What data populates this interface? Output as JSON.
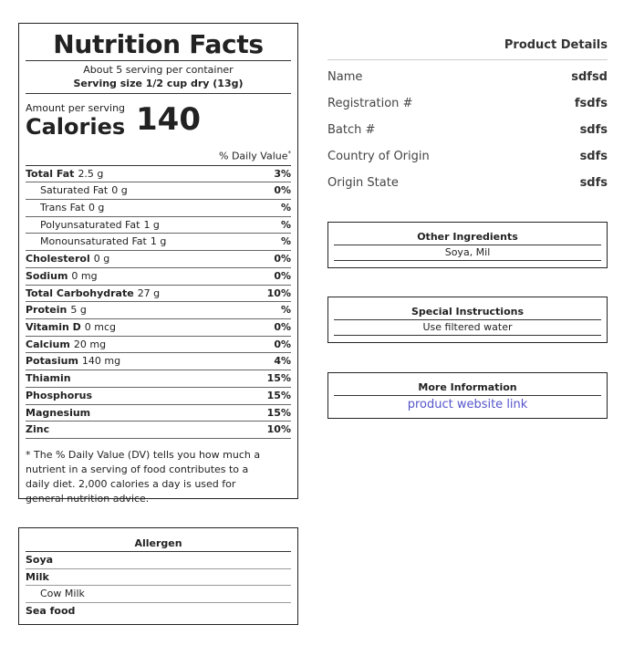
{
  "nutrition": {
    "title": "Nutrition Facts",
    "servings_per_container": "About 5 serving per container",
    "serving_size": "Serving size 1/2 cup dry (13g)",
    "amount_label": "Amount per serving",
    "calories_label": "Calories",
    "calories_value": "140",
    "dv_header": "% Daily Value",
    "dv_mark": "*",
    "rows": [
      {
        "name": "Total Fat",
        "amount": "2.5 g",
        "pct": "3%",
        "sub": false
      },
      {
        "name": "Saturated Fat",
        "amount": "0 g",
        "pct": "0%",
        "sub": true
      },
      {
        "name": "Trans Fat",
        "amount": "0 g",
        "pct": "%",
        "sub": true
      },
      {
        "name": "Polyunsaturated Fat",
        "amount": "1 g",
        "pct": "%",
        "sub": true
      },
      {
        "name": "Monounsaturated Fat",
        "amount": "1 g",
        "pct": "%",
        "sub": true
      },
      {
        "name": "Cholesterol",
        "amount": "0 g",
        "pct": "0%",
        "sub": false
      },
      {
        "name": "Sodium",
        "amount": "0 mg",
        "pct": "0%",
        "sub": false
      },
      {
        "name": "Total Carbohydrate",
        "amount": "27 g",
        "pct": "10%",
        "sub": false
      },
      {
        "name": "Protein",
        "amount": "5 g",
        "pct": "%",
        "sub": false
      },
      {
        "name": "Vitamin D",
        "amount": "0 mcg",
        "pct": "0%",
        "sub": false
      },
      {
        "name": "Calcium",
        "amount": "20 mg",
        "pct": "0%",
        "sub": false
      },
      {
        "name": "Potasium",
        "amount": "140 mg",
        "pct": "4%",
        "sub": false
      },
      {
        "name": "Thiamin",
        "amount": "",
        "pct": "15%",
        "sub": false
      },
      {
        "name": "Phosphorus",
        "amount": "",
        "pct": "15%",
        "sub": false
      },
      {
        "name": "Magnesium",
        "amount": "",
        "pct": "15%",
        "sub": false
      },
      {
        "name": "Zinc",
        "amount": "",
        "pct": "10%",
        "sub": false
      }
    ],
    "footnote": "* The % Daily Value (DV) tells you how much a nutrient in a serving of food contributes to a daily diet. 2,000 calories a day is used for general nutrition advice."
  },
  "allergen": {
    "title": "Allergen",
    "items": [
      {
        "label": "Soya",
        "level": "top"
      },
      {
        "label": "Milk",
        "level": "top"
      },
      {
        "label": "Cow Milk",
        "level": "sub"
      },
      {
        "label": "Sea food",
        "level": "top"
      }
    ]
  },
  "product_details": {
    "title": "Product Details",
    "fields": [
      {
        "label": "Name",
        "value": "sdfsd"
      },
      {
        "label": "Registration #",
        "value": "fsdfs"
      },
      {
        "label": "Batch #",
        "value": "sdfs"
      },
      {
        "label": "Country of Origin",
        "value": "sdfs"
      },
      {
        "label": "Origin State",
        "value": "sdfs"
      }
    ]
  },
  "other_ingredients": {
    "title": "Other Ingredients",
    "text": "Soya, Mil"
  },
  "special_instructions": {
    "title": "Special Instructions",
    "text": "Use filtered water"
  },
  "more_information": {
    "title": "More Information",
    "link_text": "product website link"
  },
  "colors": {
    "link": "#5555cc",
    "border": "#222222"
  }
}
